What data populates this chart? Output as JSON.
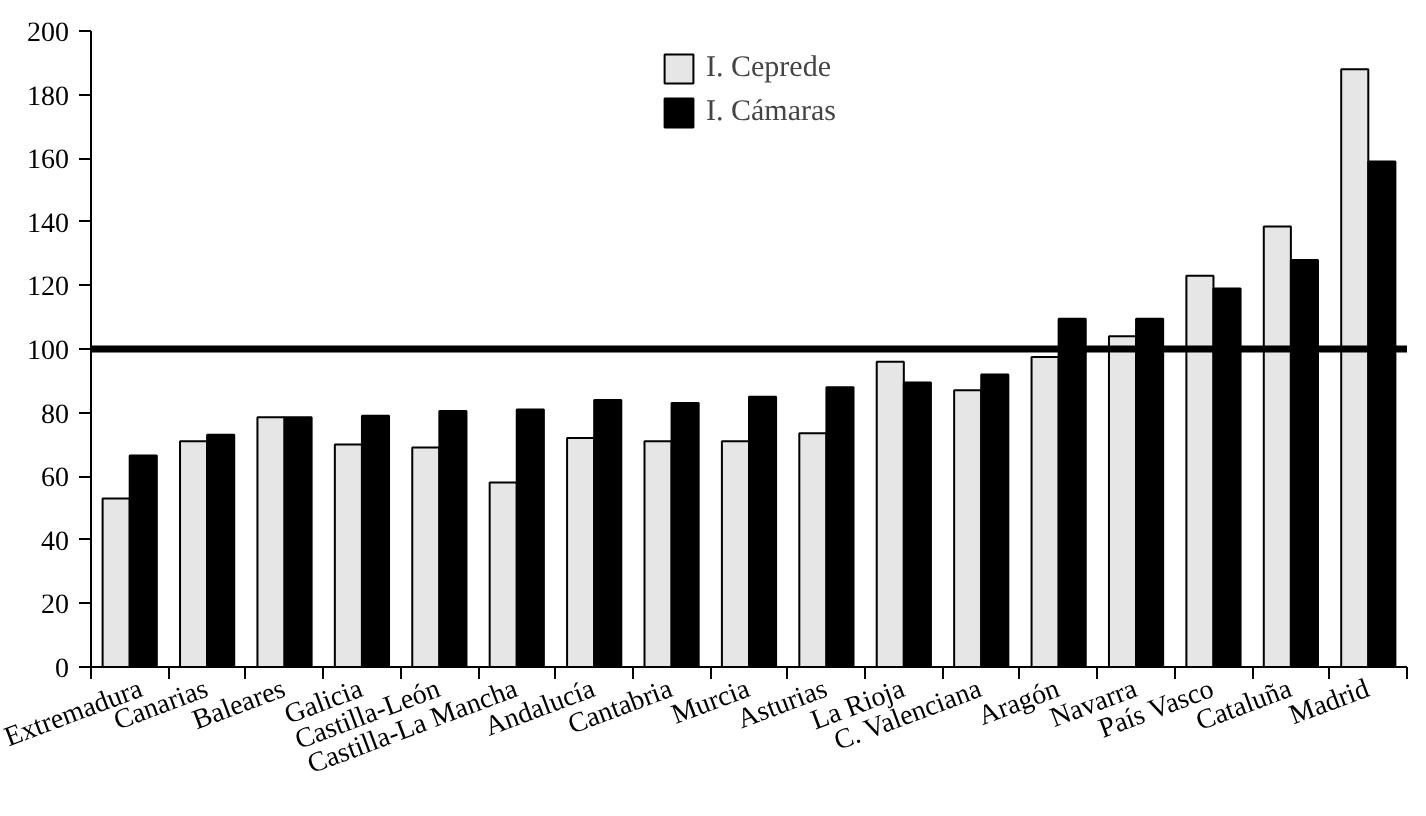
{
  "chart_data": {
    "type": "bar",
    "categories": [
      "Extremadura",
      "Canarias",
      "Baleares",
      "Galicia",
      "Castilla-León",
      "Castilla-La Mancha",
      "Andalucía",
      "Cantabria",
      "Murcia",
      "Asturias",
      "La Rioja",
      "C. Valenciana",
      "Aragón",
      "Navarra",
      "País Vasco",
      "Cataluña",
      "Madrid"
    ],
    "series": [
      {
        "name": "I. Ceprede",
        "color": "#e6e6e6",
        "values": [
          53,
          71,
          78.5,
          70,
          69,
          58,
          72,
          71,
          71,
          73.5,
          96,
          87,
          97.5,
          104,
          123,
          138.5,
          188
        ]
      },
      {
        "name": "I. Cámaras",
        "color": "#000000",
        "values": [
          66.5,
          73,
          78.5,
          79,
          80.5,
          81,
          84,
          83,
          85,
          88,
          89.5,
          92,
          109.5,
          109.5,
          119,
          128,
          159
        ]
      }
    ],
    "ylim": [
      0,
      200
    ],
    "yticks": [
      0,
      20,
      40,
      60,
      80,
      100,
      120,
      140,
      160,
      180,
      200
    ],
    "ref_lines": [
      {
        "axis": "y",
        "value": 100,
        "color": "#000000"
      }
    ],
    "grid": false,
    "legend": "top"
  }
}
